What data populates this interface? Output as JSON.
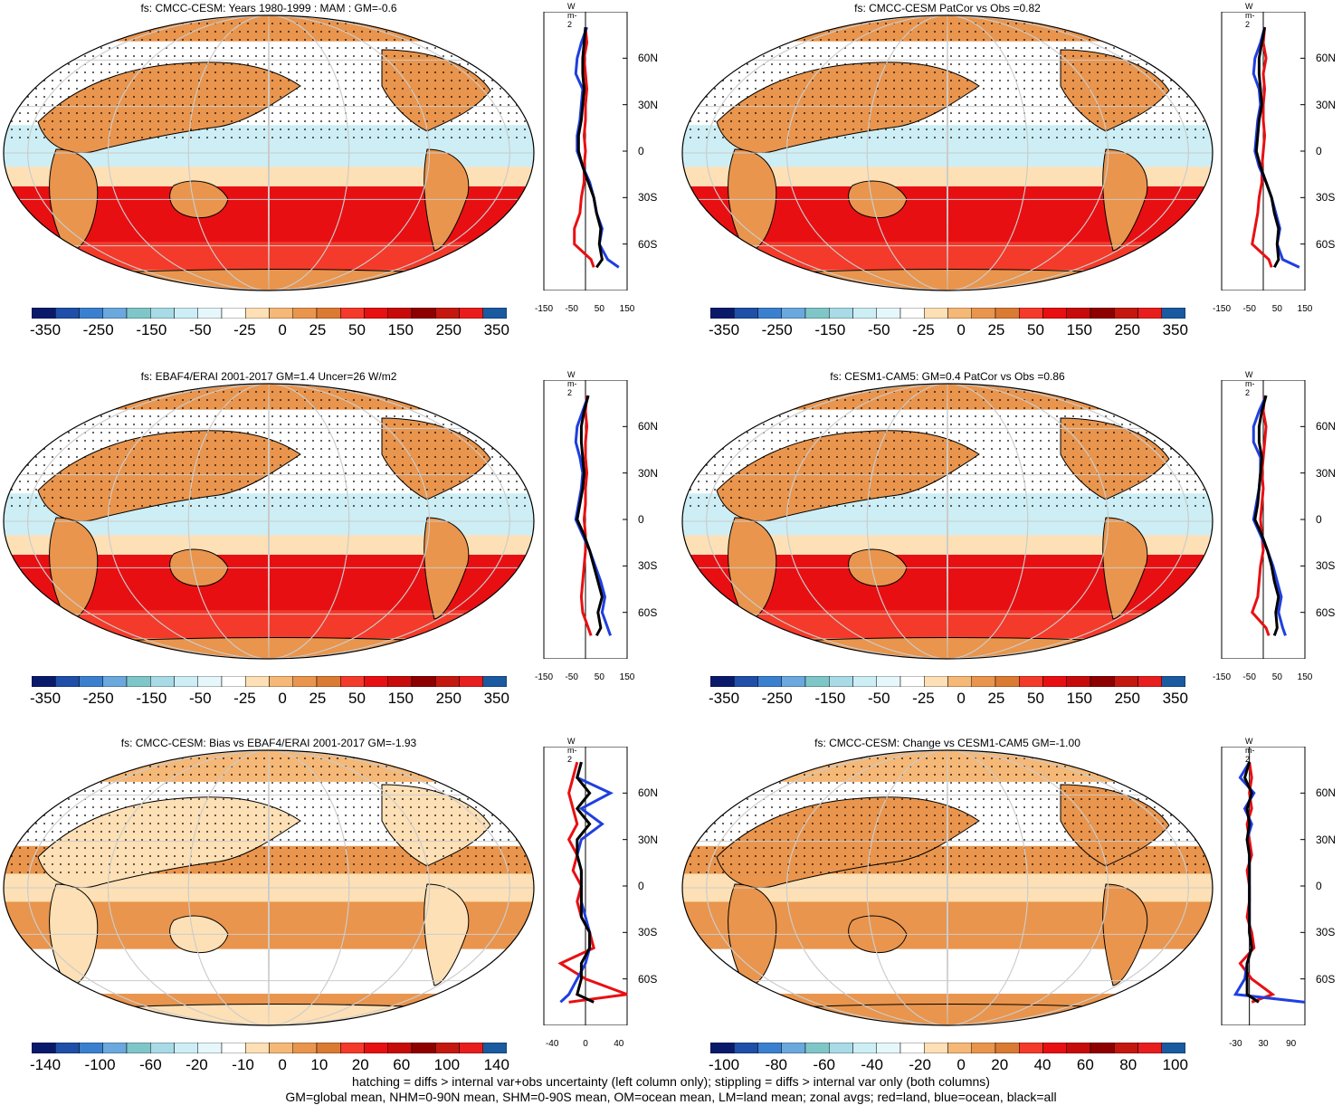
{
  "palette": [
    "#0a1a6b",
    "#1f4fa8",
    "#3b7fcf",
    "#6aa8dd",
    "#7fc6c8",
    "#a8dbe6",
    "#cdeef5",
    "#e6f7fb",
    "#ffffff",
    "#fde0b5",
    "#f5b877",
    "#e9954d",
    "#db7a32",
    "#f43a2a",
    "#e80f12",
    "#c70a0a",
    "#8e0000",
    "#c4180f",
    "#e81e1e",
    "#1a5aa0"
  ],
  "footer": {
    "line1": "hatching = diffs > internal var+obs uncertainty (left column only); stippling = diffs > internal var only (both columns)",
    "line2": "GM=global mean, NHM=0-90N mean, SHM=0-90S mean, OM=ocean mean, LM=land mean; zonal avgs; red=land, blue=ocean, black=all"
  },
  "panels": [
    {
      "title": "fs: CMCC-CESM: Years 1980-1999 : MAM : GM=-0.6",
      "colorbar_labels": [
        "-350",
        "-250",
        "-150",
        "-50",
        "-25",
        "0",
        "25",
        "50",
        "150",
        "250",
        "350"
      ],
      "zonal": {
        "unit": "W m-2",
        "x_ticks": [
          "-150",
          "-50",
          "50",
          "150"
        ],
        "xlim": [
          -150,
          150
        ],
        "lat_labels": [
          "60N",
          "30N",
          "0",
          "30S",
          "60S"
        ],
        "profile": {
          "lat": [
            80,
            70,
            60,
            50,
            40,
            30,
            20,
            10,
            0,
            -10,
            -20,
            -30,
            -40,
            -50,
            -60,
            -70,
            -75
          ],
          "land": [
            0,
            5,
            -5,
            0,
            5,
            0,
            0,
            -5,
            0,
            -5,
            -5,
            -15,
            -20,
            -40,
            -40,
            20,
            30
          ],
          "ocean": [
            5,
            -15,
            -30,
            -35,
            -10,
            -15,
            -20,
            -30,
            -30,
            -10,
            15,
            30,
            40,
            60,
            50,
            80,
            120
          ],
          "all": [
            0,
            -5,
            -10,
            -10,
            -5,
            -10,
            -15,
            -25,
            -25,
            -10,
            10,
            30,
            40,
            55,
            50,
            60,
            40
          ]
        }
      }
    },
    {
      "title": "fs: CMCC-CESM PatCor vs Obs =0.82",
      "colorbar_labels": [
        "-350",
        "-250",
        "-150",
        "-50",
        "-25",
        "0",
        "25",
        "50",
        "150",
        "250",
        "350"
      ],
      "zonal": {
        "unit": "W m-2",
        "x_ticks": [
          "-150",
          "-50",
          "50",
          "150"
        ],
        "xlim": [
          -150,
          150
        ],
        "lat_labels": [
          "60N",
          "30N",
          "0",
          "30S",
          "60S"
        ],
        "profile": {
          "lat": [
            80,
            70,
            60,
            50,
            40,
            30,
            20,
            10,
            0,
            -10,
            -20,
            -30,
            -40,
            -50,
            -60,
            -70,
            -75
          ],
          "land": [
            5,
            0,
            10,
            0,
            5,
            0,
            0,
            5,
            0,
            -5,
            -5,
            -15,
            -20,
            -30,
            -40,
            20,
            30
          ],
          "ocean": [
            5,
            -10,
            -30,
            -35,
            -15,
            -10,
            -20,
            -25,
            -30,
            -15,
            10,
            30,
            45,
            60,
            50,
            70,
            130
          ],
          "all": [
            5,
            -5,
            -15,
            -15,
            -10,
            -5,
            -15,
            -20,
            -25,
            -10,
            10,
            30,
            40,
            55,
            50,
            55,
            40
          ]
        }
      }
    },
    {
      "title": "fs: EBAF4/ERAI 2001-2017 GM=1.4 Uncer=26 W/m2",
      "colorbar_labels": [
        "-350",
        "-250",
        "-150",
        "-50",
        "-25",
        "0",
        "25",
        "50",
        "150",
        "250",
        "350"
      ],
      "zonal": {
        "unit": "W m-2",
        "x_ticks": [
          "-150",
          "-50",
          "50",
          "150"
        ],
        "xlim": [
          -150,
          150
        ],
        "lat_labels": [
          "60N",
          "30N",
          "0",
          "30S",
          "60S"
        ],
        "profile": {
          "lat": [
            80,
            70,
            60,
            50,
            40,
            30,
            20,
            10,
            0,
            -10,
            -20,
            -30,
            -40,
            -50,
            -60,
            -70,
            -75
          ],
          "land": [
            5,
            0,
            5,
            0,
            0,
            5,
            0,
            0,
            -5,
            0,
            0,
            -5,
            -10,
            -15,
            -10,
            10,
            20
          ],
          "ocean": [
            10,
            -10,
            -30,
            -35,
            -20,
            -10,
            -15,
            -25,
            -35,
            -10,
            15,
            35,
            55,
            70,
            60,
            80,
            90
          ],
          "all": [
            10,
            -5,
            -15,
            -15,
            -10,
            -5,
            -10,
            -20,
            -30,
            -5,
            15,
            30,
            45,
            60,
            45,
            55,
            40
          ]
        }
      }
    },
    {
      "title": "fs: CESM1-CAM5: GM=0.4 PatCor vs Obs =0.86",
      "colorbar_labels": [
        "-350",
        "-250",
        "-150",
        "-50",
        "-25",
        "0",
        "25",
        "50",
        "150",
        "250",
        "350"
      ],
      "zonal": {
        "unit": "W m-2",
        "x_ticks": [
          "-150",
          "-50",
          "50",
          "150"
        ],
        "xlim": [
          -150,
          150
        ],
        "lat_labels": [
          "60N",
          "30N",
          "0",
          "30S",
          "60S"
        ],
        "profile": {
          "lat": [
            80,
            70,
            60,
            50,
            40,
            30,
            20,
            10,
            0,
            -10,
            -20,
            -30,
            -40,
            -50,
            -60,
            -70,
            -75
          ],
          "land": [
            5,
            0,
            10,
            5,
            0,
            -5,
            0,
            -5,
            -10,
            -5,
            0,
            -10,
            -15,
            -20,
            -40,
            10,
            20
          ],
          "ocean": [
            10,
            -15,
            -35,
            -35,
            -10,
            -10,
            -15,
            -25,
            -35,
            -10,
            15,
            35,
            50,
            65,
            55,
            70,
            80
          ],
          "all": [
            10,
            -5,
            -15,
            -15,
            -5,
            -10,
            -15,
            -20,
            -30,
            -5,
            15,
            30,
            40,
            55,
            45,
            50,
            40
          ]
        }
      }
    },
    {
      "title": "fs: CMCC-CESM: Bias vs EBAF4/ERAI 2001-2017 GM=-1.93",
      "colorbar_labels": [
        "-140",
        "-100",
        "-60",
        "-20",
        "-10",
        "0",
        "10",
        "20",
        "60",
        "100",
        "140"
      ],
      "zonal": {
        "unit": "W m-2",
        "x_ticks": [
          "-40",
          "0",
          "40"
        ],
        "xlim": [
          -50,
          50
        ],
        "lat_labels": [
          "60N",
          "30N",
          "0",
          "30S",
          "60S"
        ],
        "profile": {
          "lat": [
            80,
            70,
            60,
            50,
            40,
            30,
            20,
            10,
            0,
            -10,
            -20,
            -30,
            -40,
            -50,
            -60,
            -70,
            -75
          ],
          "land": [
            -10,
            -15,
            -20,
            -15,
            -10,
            -20,
            -10,
            -15,
            -5,
            -10,
            -5,
            5,
            10,
            -30,
            0,
            50,
            -20
          ],
          "ocean": [
            -5,
            -10,
            30,
            -5,
            20,
            -5,
            -10,
            -5,
            -5,
            -5,
            0,
            5,
            5,
            0,
            -10,
            -20,
            -30
          ],
          "all": [
            -5,
            -10,
            5,
            -10,
            5,
            -10,
            -10,
            -5,
            -5,
            -5,
            -5,
            5,
            5,
            -5,
            -5,
            -10,
            10
          ]
        }
      }
    },
    {
      "title": "fs: CMCC-CESM: Change vs CESM1-CAM5 GM=-1.00",
      "colorbar_labels": [
        "-100",
        "-80",
        "-60",
        "-40",
        "-20",
        "0",
        "20",
        "40",
        "60",
        "80",
        "100"
      ],
      "zonal": {
        "unit": "W m-2",
        "x_ticks": [
          "-30",
          "30",
          "90"
        ],
        "xlim": [
          -60,
          120
        ],
        "lat_labels": [
          "60N",
          "30N",
          "0",
          "30S",
          "60S"
        ],
        "profile": {
          "lat": [
            80,
            70,
            60,
            50,
            40,
            30,
            20,
            10,
            0,
            -10,
            -20,
            -30,
            -40,
            -50,
            -60,
            -70,
            -75
          ],
          "land": [
            0,
            5,
            0,
            5,
            -5,
            0,
            5,
            -5,
            0,
            0,
            -5,
            5,
            10,
            -20,
            5,
            50,
            5
          ],
          "ocean": [
            0,
            -20,
            10,
            -10,
            5,
            -5,
            0,
            0,
            0,
            0,
            0,
            0,
            5,
            -5,
            -10,
            -30,
            120
          ],
          "all": [
            0,
            -10,
            5,
            -5,
            0,
            -5,
            0,
            0,
            0,
            0,
            0,
            0,
            5,
            -5,
            -5,
            -5,
            20
          ]
        }
      }
    }
  ]
}
